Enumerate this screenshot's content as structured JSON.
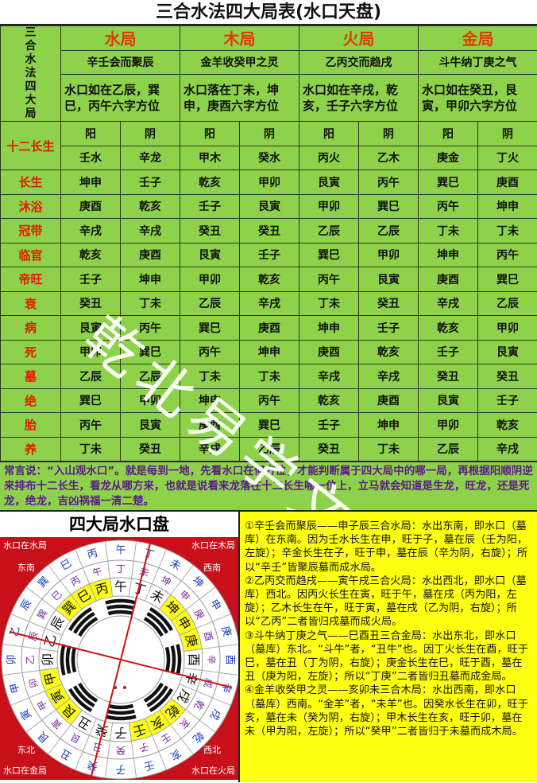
{
  "title": "三合水法四大局表(水口天盘)",
  "side_label": "三合水法四大局",
  "ju": [
    {
      "name": "水局",
      "phrase": "辛壬会而聚辰",
      "desc": "水口如在乙辰，巽巳，丙午六字方位"
    },
    {
      "name": "木局",
      "phrase": "金羊收癸甲之灵",
      "desc": "水口落在丁未，坤申，庚酉六字方位"
    },
    {
      "name": "火局",
      "phrase": "乙丙交而趋戌",
      "desc": "水口如在辛戌，乾亥，壬子六字方位"
    },
    {
      "name": "金局",
      "phrase": "斗牛纳丁庚之气",
      "desc": "水口如在癸丑，艮寅，甲卯六字方位"
    }
  ],
  "twelve_label": "十二长生",
  "yinyang": [
    "阳",
    "阴",
    "阳",
    "阴",
    "阳",
    "阴",
    "阳",
    "阴"
  ],
  "stems": [
    "壬水",
    "辛龙",
    "甲木",
    "癸水",
    "丙火",
    "乙木",
    "庚金",
    "丁火"
  ],
  "rows": [
    {
      "label": "长生",
      "cells": [
        "坤申",
        "壬子",
        "乾亥",
        "甲卯",
        "艮寅",
        "丙午",
        "巽巳",
        "庚酉"
      ]
    },
    {
      "label": "沐浴",
      "cells": [
        "庚酉",
        "乾亥",
        "壬子",
        "艮寅",
        "甲卯",
        "巽巳",
        "丙午",
        "坤申"
      ]
    },
    {
      "label": "冠带",
      "cells": [
        "辛戌",
        "辛戌",
        "癸丑",
        "癸丑",
        "乙辰",
        "乙辰",
        "丁未",
        "丁未"
      ]
    },
    {
      "label": "临官",
      "cells": [
        "乾亥",
        "庚酉",
        "艮寅",
        "壬子",
        "巽巳",
        "甲卯",
        "坤申",
        "丙午"
      ]
    },
    {
      "label": "帝旺",
      "cells": [
        "壬子",
        "坤申",
        "甲卯",
        "乾亥",
        "丙午",
        "艮寅",
        "庚酉",
        "巽巳"
      ]
    },
    {
      "label": "衰",
      "cells": [
        "癸丑",
        "丁未",
        "乙辰",
        "辛戌",
        "丁未",
        "癸丑",
        "辛戌",
        "乙辰"
      ]
    },
    {
      "label": "病",
      "cells": [
        "艮寅",
        "丙午",
        "巽巳",
        "庚酉",
        "坤申",
        "壬子",
        "乾亥",
        "甲卯"
      ]
    },
    {
      "label": "死",
      "cells": [
        "甲卯",
        "巽巳",
        "丙午",
        "坤申",
        "庚酉",
        "乾亥",
        "壬子",
        "艮寅"
      ]
    },
    {
      "label": "墓",
      "cells": [
        "乙辰",
        "乙辰",
        "丁未",
        "丁未",
        "辛戌",
        "辛戌",
        "癸丑",
        "癸丑"
      ]
    },
    {
      "label": "绝",
      "cells": [
        "巽巳",
        "甲卯",
        "坤申",
        "丙午",
        "乾亥",
        "庚酉",
        "艮寅",
        "壬子"
      ]
    },
    {
      "label": "胎",
      "cells": [
        "丙午",
        "艮寅",
        "庚酉",
        "巽巳",
        "壬子",
        "坤申",
        "甲卯",
        "乾亥"
      ]
    },
    {
      "label": "养",
      "cells": [
        "丁未",
        "癸丑",
        "辛戌",
        "乙辰",
        "癸丑",
        "丁未",
        "乙辰",
        "辛戌"
      ]
    }
  ],
  "note": "常言说：“入山观水口”。就是每到一地，先看水口在何方位，才能判断属于四大局中的哪一局，再根据阳顺阴逆来排布十二长生，看龙从哪方来，也就是说看来龙落在十二长生哪一位上，立马就会知道是生龙，旺龙，还是死龙，绝龙，吉凶祸福一清二楚。",
  "plate": {
    "title": "四大局水口盘",
    "corners": {
      "tl": "水口在水局",
      "tr": "水口在木局",
      "bl": "水口在金局",
      "br": "水口在火局"
    },
    "directions": {
      "se": "东南",
      "sw": "西南",
      "ne": "东北",
      "nw": "西北"
    },
    "mountains": [
      "午",
      "丁",
      "未",
      "坤",
      "申",
      "庚",
      "酉",
      "辛",
      "戌",
      "乾",
      "亥",
      "壬",
      "子",
      "癸",
      "丑",
      "艮",
      "寅",
      "甲",
      "卯",
      "乙",
      "辰",
      "巽",
      "巳",
      "丙"
    ],
    "highlight": [
      "坤",
      "申",
      "庚",
      "乾",
      "亥",
      "壬",
      "艮",
      "寅",
      "甲",
      "巽",
      "巳",
      "丙"
    ],
    "colors": {
      "background": "#c8101a",
      "highlight": "#ffff14",
      "inner_ring": "#7a2aa0",
      "outer_ring": "#1a3ac8"
    }
  },
  "explain": [
    "①辛壬会而聚辰——申子辰三合水局：水出东南，即水口（墓库）在东南。因为壬水长生在申，旺于子，墓在辰（壬为阳，左旋）；辛金长生在子，旺于申，墓在辰（辛为阴，右旋）；所以“辛壬”皆聚辰墓而成水局。",
    "②乙丙交而趋戌——寅午戌三合火局：水出西北，即水口（墓库）西北。因丙火长生在寅，旺于午，墓在戌（丙为阳，左旋）；乙木长生在午，旺于寅，墓在戌（乙为阴，右旋）；所以“乙丙”二者皆归戌墓而成火局。",
    "③斗牛纳丁庚之气——巳酉丑三合金局：水出东北，即水口（墓库）东北。“斗牛”者，“丑牛”也。因丁火长生在酉，旺于巳，墓在丑（丁为阴，右旋）；庚金长生在巳，旺于酉，墓在丑（庚为阳，左旋）；所以“丁庚”二者皆归丑墓而成金局。",
    "④金羊收癸甲之灵——亥卯未三合木局：水出西南，即水口（墓库）西南。“金羊”者，“未羊”也。因癸水长生在卯，旺于亥，墓在未（癸为阴，右旋）；甲木长生在亥，旺于卯，墓在未（甲为阳，左旋）；所以“癸甲”二者皆归于未墓而成木局。"
  ],
  "watermark": "乾北易学文化",
  "colors": {
    "table_bg": "#8dd24a",
    "label_red": "#e01a00",
    "note_text": "#5a1a8a",
    "explain_bg": "#ffff14"
  }
}
